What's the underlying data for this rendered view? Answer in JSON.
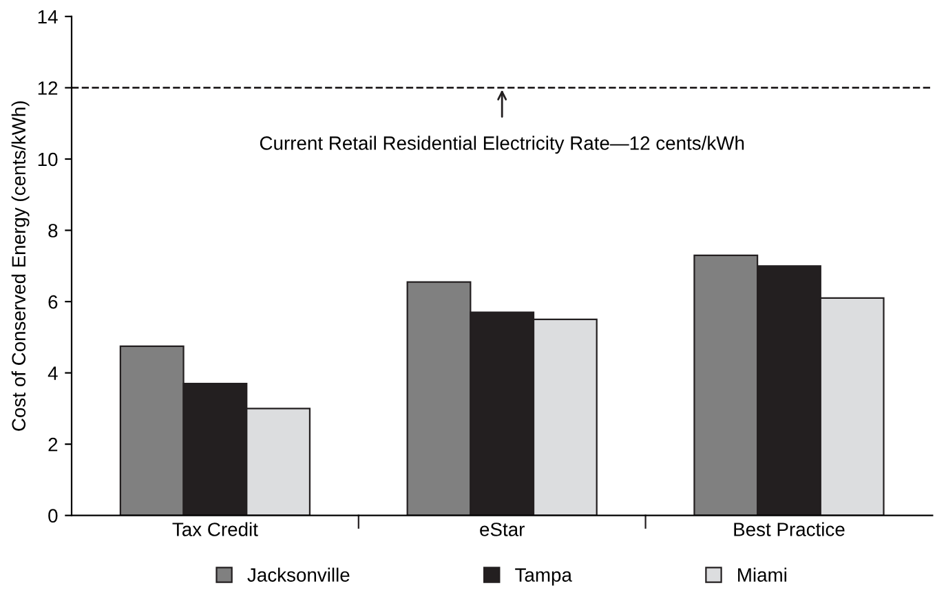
{
  "chart_data": {
    "type": "bar",
    "ylabel": "Cost of Conserved Energy (cents/kWh)",
    "categories": [
      "Tax Credit",
      "eStar",
      "Best Practice"
    ],
    "series": [
      {
        "name": "Jacksonville",
        "color": "#808080",
        "values": [
          4.75,
          6.55,
          7.3
        ]
      },
      {
        "name": "Tampa",
        "color": "#231f20",
        "values": [
          3.7,
          5.7,
          7.0
        ]
      },
      {
        "name": "Miami",
        "color": "#dcdddf",
        "values": [
          3.0,
          5.5,
          6.1
        ]
      }
    ],
    "ylim": [
      0,
      14
    ],
    "yticks": [
      0,
      2,
      4,
      6,
      8,
      10,
      12,
      14
    ],
    "ref_lines": [
      {
        "axis": "y",
        "value": 12,
        "label": "Current Retail Residential Electricity Rate—12 cents/kWh",
        "line_style": "dashed",
        "color": "#231f20"
      }
    ],
    "grid": false,
    "legend": "bottom"
  }
}
